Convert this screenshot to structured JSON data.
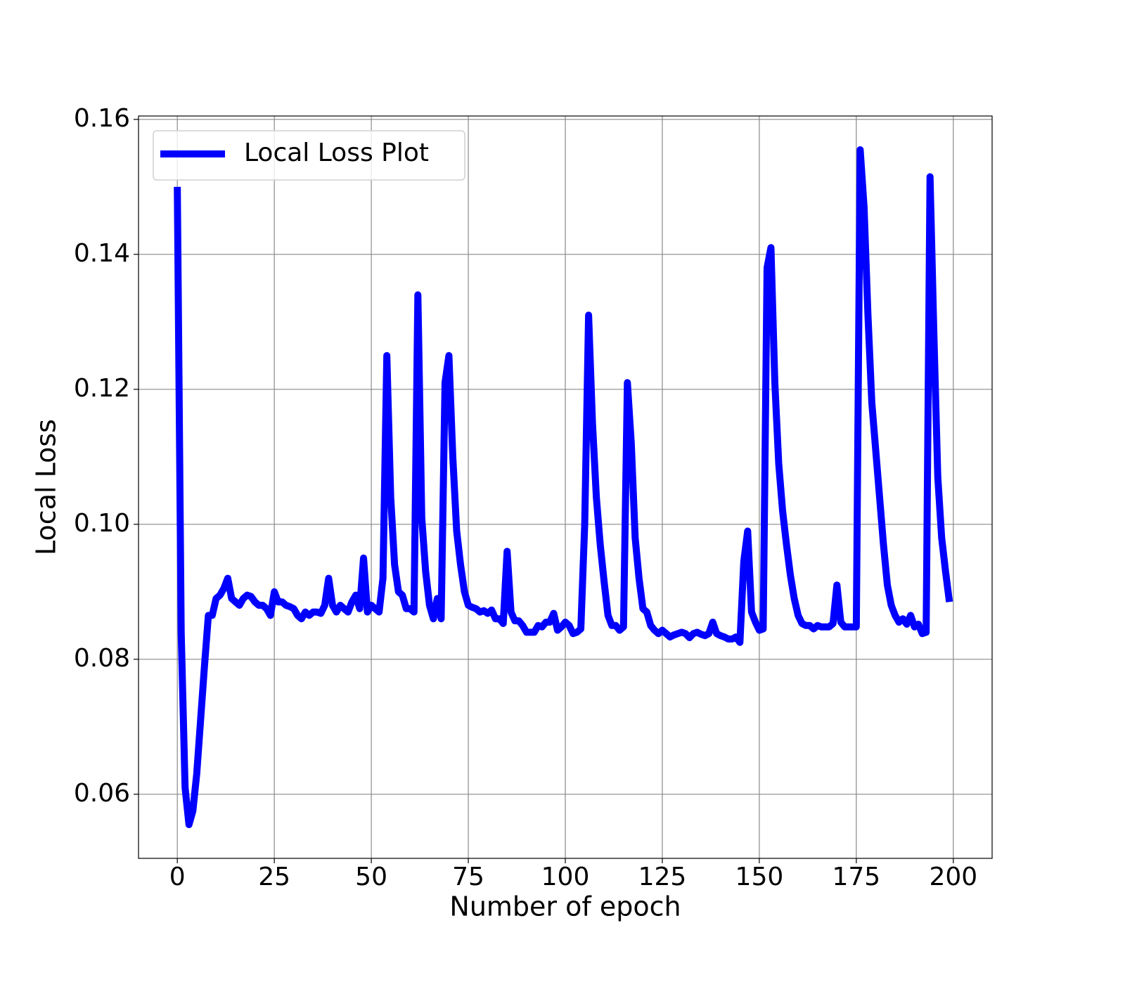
{
  "chart_data": {
    "type": "line",
    "xlabel": "Number of epoch",
    "ylabel": "Local Loss",
    "x": [
      0,
      1,
      2,
      3,
      4,
      5,
      6,
      7,
      8,
      9,
      10,
      11,
      12,
      13,
      14,
      15,
      16,
      17,
      18,
      19,
      20,
      21,
      22,
      23,
      24,
      25,
      26,
      27,
      28,
      29,
      30,
      31,
      32,
      33,
      34,
      35,
      36,
      37,
      38,
      39,
      40,
      41,
      42,
      43,
      44,
      45,
      46,
      47,
      48,
      49,
      50,
      51,
      52,
      53,
      54,
      55,
      56,
      57,
      58,
      59,
      60,
      61,
      62,
      63,
      64,
      65,
      66,
      67,
      68,
      69,
      70,
      71,
      72,
      73,
      74,
      75,
      76,
      77,
      78,
      79,
      80,
      81,
      82,
      83,
      84,
      85,
      86,
      87,
      88,
      89,
      90,
      91,
      92,
      93,
      94,
      95,
      96,
      97,
      98,
      99,
      100,
      101,
      102,
      103,
      104,
      105,
      106,
      107,
      108,
      109,
      110,
      111,
      112,
      113,
      114,
      115,
      116,
      117,
      118,
      119,
      120,
      121,
      122,
      123,
      124,
      125,
      126,
      127,
      128,
      129,
      130,
      131,
      132,
      133,
      134,
      135,
      136,
      137,
      138,
      139,
      140,
      141,
      142,
      143,
      144,
      145,
      146,
      147,
      148,
      149,
      150,
      151,
      152,
      153,
      154,
      155,
      156,
      157,
      158,
      159,
      160,
      161,
      162,
      163,
      164,
      165,
      166,
      167,
      168,
      169,
      170,
      171,
      172,
      173,
      174,
      175,
      176,
      177,
      178,
      179,
      180,
      181,
      182,
      183,
      184,
      185,
      186,
      187,
      188,
      189,
      190,
      191,
      192,
      193,
      194,
      195,
      196,
      197,
      198,
      199
    ],
    "series": [
      {
        "name": "Local Loss Plot",
        "color": "#0000ff",
        "values": [
          0.15,
          0.084,
          0.061,
          0.0555,
          0.0575,
          0.063,
          0.071,
          0.079,
          0.0865,
          0.0865,
          0.089,
          0.0895,
          0.0905,
          0.092,
          0.089,
          0.0885,
          0.088,
          0.089,
          0.0895,
          0.0893,
          0.0885,
          0.088,
          0.088,
          0.0875,
          0.0865,
          0.09,
          0.0885,
          0.0885,
          0.088,
          0.0878,
          0.0875,
          0.0865,
          0.086,
          0.087,
          0.0865,
          0.087,
          0.087,
          0.0868,
          0.088,
          0.092,
          0.088,
          0.087,
          0.088,
          0.0875,
          0.087,
          0.0885,
          0.0895,
          0.0875,
          0.095,
          0.087,
          0.088,
          0.0875,
          0.087,
          0.092,
          0.125,
          0.104,
          0.094,
          0.09,
          0.0895,
          0.0875,
          0.0875,
          0.087,
          0.134,
          0.101,
          0.093,
          0.088,
          0.086,
          0.089,
          0.086,
          0.121,
          0.125,
          0.11,
          0.099,
          0.094,
          0.09,
          0.088,
          0.0877,
          0.0875,
          0.087,
          0.0872,
          0.0868,
          0.0873,
          0.086,
          0.086,
          0.0853,
          0.096,
          0.087,
          0.0857,
          0.0857,
          0.085,
          0.084,
          0.084,
          0.084,
          0.085,
          0.0848,
          0.0855,
          0.0855,
          0.0868,
          0.0843,
          0.0848,
          0.0855,
          0.085,
          0.0838,
          0.084,
          0.0845,
          0.1,
          0.131,
          0.115,
          0.104,
          0.097,
          0.0915,
          0.0865,
          0.085,
          0.085,
          0.0843,
          0.0848,
          0.121,
          0.112,
          0.098,
          0.092,
          0.0875,
          0.087,
          0.085,
          0.0843,
          0.0838,
          0.0843,
          0.0838,
          0.0833,
          0.0836,
          0.0838,
          0.084,
          0.0838,
          0.0832,
          0.0838,
          0.084,
          0.0837,
          0.0835,
          0.0838,
          0.0855,
          0.0838,
          0.0835,
          0.0833,
          0.083,
          0.083,
          0.0833,
          0.0825,
          0.0945,
          0.099,
          0.087,
          0.0855,
          0.0843,
          0.0845,
          0.138,
          0.141,
          0.121,
          0.109,
          0.102,
          0.097,
          0.0925,
          0.089,
          0.0865,
          0.0853,
          0.085,
          0.085,
          0.0845,
          0.085,
          0.0848,
          0.0848,
          0.0848,
          0.0853,
          0.091,
          0.0855,
          0.0848,
          0.0848,
          0.0848,
          0.0848,
          0.1555,
          0.147,
          0.131,
          0.118,
          0.111,
          0.104,
          0.097,
          0.091,
          0.088,
          0.0865,
          0.0855,
          0.086,
          0.0852,
          0.0865,
          0.0848,
          0.0852,
          0.0838,
          0.084,
          0.1515,
          0.128,
          0.107,
          0.098,
          0.093,
          0.0885
        ]
      }
    ],
    "xlim": [
      -10,
      210
    ],
    "xticks": [
      0,
      25,
      50,
      75,
      100,
      125,
      150,
      175,
      200
    ],
    "ylim": [
      0.0505,
      0.1605
    ],
    "yticks": [
      0.06,
      0.08,
      {
        "value": 0.1,
        "label": "0.10"
      },
      0.12,
      0.14,
      0.16
    ],
    "grid": true,
    "legend": "upper left"
  }
}
